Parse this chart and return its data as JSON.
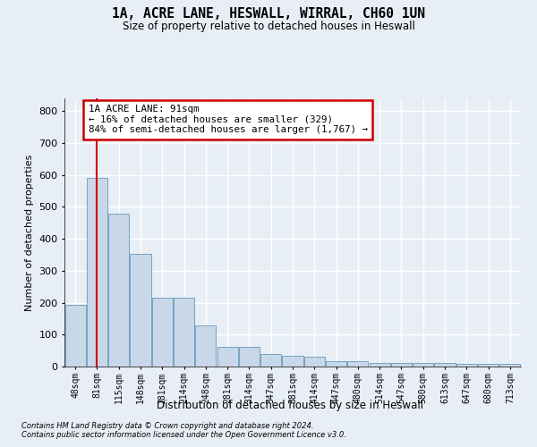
{
  "title_line1": "1A, ACRE LANE, HESWALL, WIRRAL, CH60 1UN",
  "title_line2": "Size of property relative to detached houses in Heswall",
  "xlabel": "Distribution of detached houses by size in Heswall",
  "ylabel": "Number of detached properties",
  "bar_color": "#c8d8e8",
  "bar_edge_color": "#6699bb",
  "categories": [
    "48sqm",
    "81sqm",
    "115sqm",
    "148sqm",
    "181sqm",
    "214sqm",
    "248sqm",
    "281sqm",
    "314sqm",
    "347sqm",
    "381sqm",
    "414sqm",
    "447sqm",
    "480sqm",
    "514sqm",
    "547sqm",
    "580sqm",
    "613sqm",
    "647sqm",
    "680sqm",
    "713sqm"
  ],
  "values": [
    193,
    590,
    480,
    352,
    215,
    215,
    130,
    62,
    62,
    40,
    35,
    32,
    17,
    17,
    10,
    10,
    10,
    10,
    8,
    8,
    8
  ],
  "ylim": [
    0,
    840
  ],
  "yticks": [
    0,
    100,
    200,
    300,
    400,
    500,
    600,
    700,
    800
  ],
  "property_line_x": 1,
  "annotation_text": "1A ACRE LANE: 91sqm\n← 16% of detached houses are smaller (329)\n84% of semi-detached houses are larger (1,767) →",
  "annotation_box_color": "#ffffff",
  "annotation_border_color": "#cc0000",
  "footer_line1": "Contains HM Land Registry data © Crown copyright and database right 2024.",
  "footer_line2": "Contains public sector information licensed under the Open Government Licence v3.0.",
  "bg_color": "#e8eef5",
  "plot_bg_color": "#e8eef5",
  "grid_color": "#ffffff",
  "red_line_color": "#cc0000"
}
